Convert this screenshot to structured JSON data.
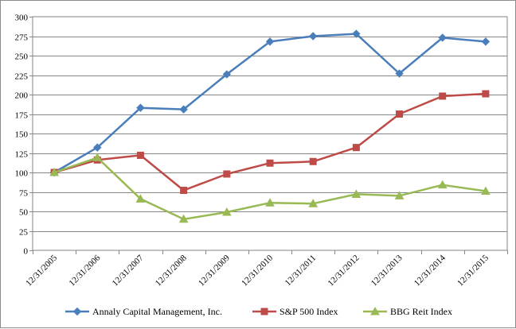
{
  "chart_data": {
    "type": "line",
    "categories": [
      "12/31/2005",
      "12/31/2006",
      "12/31/2007",
      "12/31/2008",
      "12/31/2009",
      "12/31/2010",
      "12/31/2011",
      "12/31/2012",
      "12/31/2013",
      "12/31/2014",
      "12/31/2015"
    ],
    "series": [
      {
        "name": "Annaly Capital Management, Inc.",
        "color": "#4a7ebb",
        "marker": "diamond",
        "values": [
          100,
          132,
          183,
          181,
          226,
          268,
          275,
          278,
          227,
          273,
          268
        ]
      },
      {
        "name": "S&P 500 Index",
        "color": "#be4b48",
        "marker": "square",
        "values": [
          100,
          116,
          122,
          77,
          98,
          112,
          114,
          132,
          175,
          198,
          201
        ]
      },
      {
        "name": "BBG Reit Index",
        "color": "#98b954",
        "marker": "triangle",
        "values": [
          100,
          119,
          66,
          40,
          49,
          61,
          60,
          72,
          70,
          84,
          76
        ]
      }
    ],
    "ylim": [
      0,
      300
    ],
    "yticks": [
      0,
      25,
      50,
      75,
      100,
      125,
      150,
      175,
      200,
      225,
      250,
      275,
      300
    ],
    "grid": true,
    "legend": "bottom",
    "title": "",
    "xlabel": "",
    "ylabel": ""
  }
}
